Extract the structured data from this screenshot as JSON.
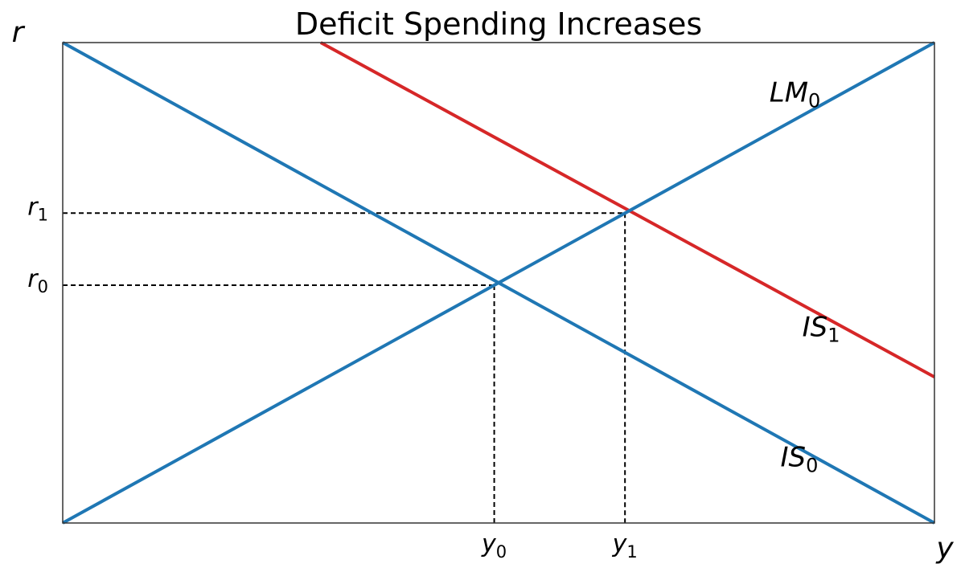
{
  "chart_data": {
    "type": "line",
    "title": "Deficit Spending Increases",
    "xlabel": "y",
    "ylabel": "r",
    "xlim": [
      0,
      10
    ],
    "ylim": [
      0,
      10
    ],
    "axis_ticks_hidden": true,
    "grid": false,
    "series": [
      {
        "name": "IS",
        "subscript": "0",
        "color": "#1f77b4",
        "x": [
          0,
          10
        ],
        "y": [
          10,
          0
        ]
      },
      {
        "name": "IS",
        "subscript": "1",
        "color": "#d62728",
        "x": [
          2.96,
          10
        ],
        "y": [
          10,
          3.04
        ]
      },
      {
        "name": "LM",
        "subscript": "0",
        "color": "#1f77b4",
        "x": [
          0,
          10
        ],
        "y": [
          0,
          10
        ]
      }
    ],
    "equilibria": [
      {
        "x": 4.95,
        "y": 4.95,
        "x_label": "y",
        "x_sub": "0",
        "y_label": "r",
        "y_sub": "0"
      },
      {
        "x": 6.45,
        "y": 6.45,
        "x_label": "y",
        "x_sub": "1",
        "y_label": "r",
        "y_sub": "1"
      }
    ],
    "guide_line_color": "#000000",
    "axes_color": "#333333"
  }
}
